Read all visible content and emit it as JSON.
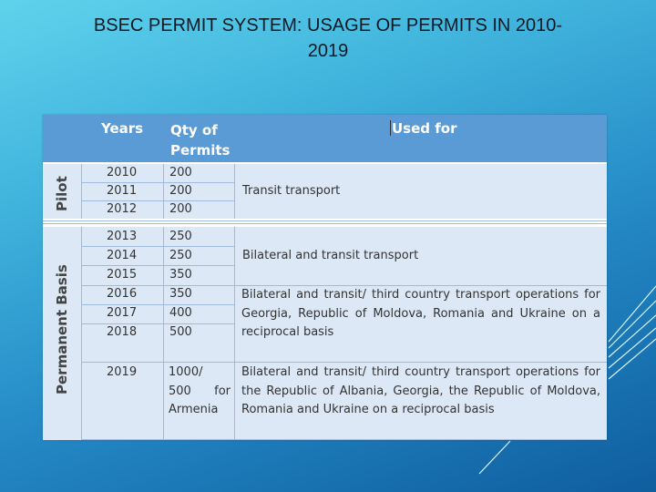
{
  "slide": {
    "title_line1": "BSEC PERMIT SYSTEM: USAGE OF PERMITS IN 2010-",
    "title_line2": "2019"
  },
  "table": {
    "headers": {
      "years": "Years",
      "qty_line1": "Qty of",
      "qty_line2": "Permits",
      "used_for": "Used for"
    },
    "pilot": {
      "label": "Pilot",
      "rows": [
        {
          "year": "2010",
          "qty": "200"
        },
        {
          "year": "2011",
          "qty": "200"
        },
        {
          "year": "2012",
          "qty": "200"
        }
      ],
      "used_for": "Transit transport"
    },
    "permanent": {
      "label": "Permanent Basis",
      "rows": [
        {
          "year": "2013",
          "qty": "250"
        },
        {
          "year": "2014",
          "qty": "250"
        },
        {
          "year": "2015",
          "qty": "350"
        },
        {
          "year": "2016",
          "qty": "350"
        },
        {
          "year": "2017",
          "qty": "400"
        },
        {
          "year": "2018",
          "qty": "500"
        }
      ],
      "used_for_a": "Bilateral and transit transport",
      "used_for_b": "Bilateral and transit/ third country transport operations for Georgia, Republic of Moldova, Romania and Ukraine on a reciprocal basis",
      "year_2019": "2019",
      "qty_2019_line1": "1000/",
      "qty_2019_line2a": "500",
      "qty_2019_line2b": "for",
      "qty_2019_line3": "Armenia",
      "used_for_2019": "Bilateral and transit/ third country transport operations for the Republic of Albania, Georgia, the Republic of Moldova, Romania and Ukraine on a reciprocal basis"
    }
  }
}
